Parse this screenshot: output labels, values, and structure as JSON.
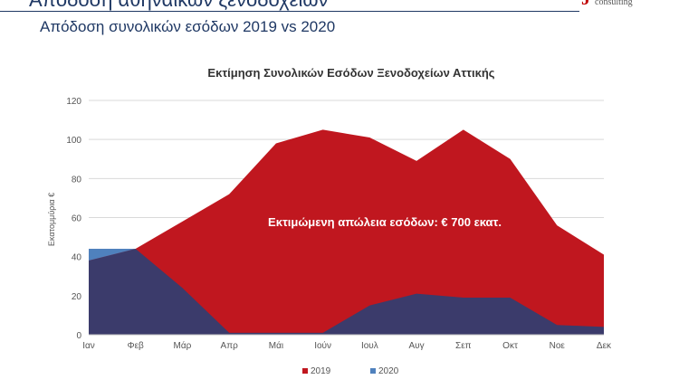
{
  "header": {
    "title": "Απόδοση αθηναϊκών ξενοδοχείων",
    "subtitle": "Απόδοση συνολικών εσόδων 2019 vs 2020",
    "logo_text": "consulting",
    "logo_mark": "J"
  },
  "colors": {
    "series_2019": "#c0171f",
    "series_2020": "#3b3b6b",
    "series_2020_legend": "#4f81bd",
    "title": "#1f3864"
  },
  "chart_data": {
    "type": "area",
    "title": "Εκτίμηση Συνολικών Εσόδων Ξενοδοχείων Αττικής",
    "ylabel": "Εκατομμύρια €",
    "xlabel": "",
    "ylim": [
      0,
      120
    ],
    "yticks": [
      0,
      20,
      40,
      60,
      80,
      100,
      120
    ],
    "categories": [
      "Ιαν",
      "Φεβ",
      "Μάρ",
      "Απρ",
      "Μάι",
      "Ιούν",
      "Ιουλ",
      "Αυγ",
      "Σεπ",
      "Οκτ",
      "Νοε",
      "Δεκ"
    ],
    "series": [
      {
        "name": "2019",
        "values": [
          44,
          44,
          58,
          72,
          98,
          105,
          101,
          89,
          105,
          90,
          56,
          41
        ]
      },
      {
        "name": "2020",
        "values": [
          38,
          44,
          24,
          1,
          1,
          1,
          15,
          21,
          19,
          19,
          5,
          4
        ]
      }
    ],
    "grid": true,
    "legend_position": "bottom",
    "annotation": "Εκτιμώμενη απώλεια εσόδων: € 700 εκατ."
  }
}
